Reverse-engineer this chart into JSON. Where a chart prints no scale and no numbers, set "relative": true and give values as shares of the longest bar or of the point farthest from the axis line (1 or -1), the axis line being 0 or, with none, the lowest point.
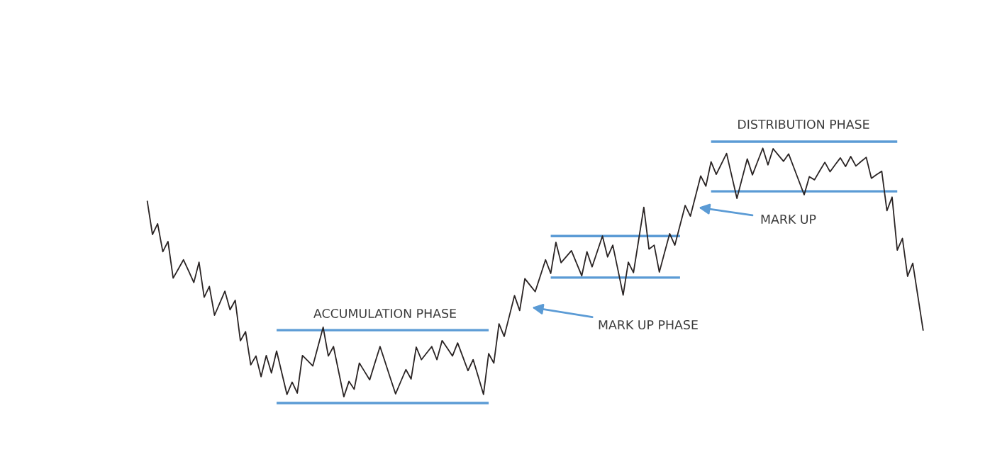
{
  "chart_data": {
    "type": "line",
    "relative": true,
    "categories": [
      null,
      null,
      null,
      null,
      null,
      null,
      null,
      null,
      null,
      null,
      null,
      null,
      null,
      null,
      null,
      null,
      null,
      null,
      null,
      null,
      null,
      null,
      null,
      null,
      null,
      null,
      null,
      null,
      null,
      null,
      null,
      null,
      null,
      null,
      null,
      null,
      null,
      null,
      null,
      null,
      null,
      null,
      null,
      null,
      null,
      null,
      null,
      null,
      null,
      null,
      null,
      null,
      null,
      null,
      null,
      null,
      null,
      null,
      null,
      null,
      null,
      null,
      null,
      null,
      null,
      null,
      null,
      null,
      null,
      null,
      null,
      null,
      null,
      null,
      null,
      null,
      null,
      null,
      null,
      null,
      null,
      null,
      null,
      null,
      null,
      null,
      null,
      null,
      null,
      null,
      null,
      null,
      null,
      null,
      null,
      null,
      null,
      null,
      null,
      null,
      null,
      null,
      null,
      null,
      null,
      null,
      null,
      null,
      null,
      null,
      null,
      null,
      null,
      null,
      null,
      null,
      null,
      null,
      null,
      null,
      null,
      null,
      null,
      null,
      null,
      null,
      null,
      null,
      null,
      null,
      null,
      null,
      null,
      null,
      null,
      null,
      null,
      null,
      null,
      null,
      null,
      null,
      null,
      null,
      null,
      null,
      null,
      null,
      null,
      null,
      null
    ],
    "series": [
      {
        "color": "#5b9bd5",
        "values": [
          null,
          null,
          null,
          null,
          null,
          null,
          null,
          null,
          null,
          null,
          null,
          null,
          null,
          null,
          null,
          null,
          null,
          null,
          null,
          null,
          null,
          null,
          null,
          null,
          null,
          0.279,
          0.279,
          0.279,
          0.279,
          0.279,
          0.279,
          0.279,
          0.279,
          0.279,
          0.279,
          0.279,
          0.279,
          0.279,
          0.279,
          0.279,
          0.279,
          0.279,
          0.279,
          0.279,
          0.279,
          0.279,
          0.279,
          0.279,
          0.279,
          0.279,
          0.279,
          0.279,
          0.279,
          0.279,
          0.279,
          0.279,
          0.279,
          0.279,
          0.279,
          0.279,
          0.279,
          0.279,
          0.279,
          0.279,
          0.279,
          0.279,
          0.279,
          null,
          null,
          null,
          null,
          null,
          null,
          null,
          null,
          null,
          null,
          null,
          null,
          null,
          null,
          null,
          null,
          null,
          null,
          null,
          null,
          null,
          null,
          null,
          null,
          null,
          null,
          null,
          null,
          null,
          null,
          null,
          null,
          null,
          null,
          null,
          null,
          null,
          null,
          null,
          null,
          null,
          null,
          null,
          null,
          null,
          null,
          null,
          null,
          null,
          null,
          null,
          null,
          null,
          null,
          null,
          null,
          null,
          null,
          null,
          null,
          null,
          null,
          null,
          null,
          null,
          null,
          null,
          null,
          null,
          null,
          null,
          null,
          null,
          null,
          null,
          null,
          null,
          null,
          null,
          null,
          null,
          null,
          null,
          null
        ]
      },
      {
        "color": "#5b9bd5",
        "values": [
          null,
          null,
          null,
          null,
          null,
          null,
          null,
          null,
          null,
          null,
          null,
          null,
          null,
          null,
          null,
          null,
          null,
          null,
          null,
          null,
          null,
          null,
          null,
          null,
          null,
          0,
          0,
          0,
          0,
          0,
          0,
          0,
          0,
          0,
          0,
          0,
          0,
          0,
          0,
          0,
          0,
          0,
          0,
          0,
          0,
          0,
          0,
          0,
          0,
          0,
          0,
          0,
          0,
          0,
          0,
          0,
          0,
          0,
          0,
          0,
          0,
          0,
          0,
          0,
          0,
          0,
          0,
          null,
          null,
          null,
          null,
          null,
          null,
          null,
          null,
          null,
          null,
          null,
          null,
          null,
          null,
          null,
          null,
          null,
          null,
          null,
          null,
          null,
          null,
          null,
          null,
          null,
          null,
          null,
          null,
          null,
          null,
          null,
          null,
          null,
          null,
          null,
          null,
          null,
          null,
          null,
          null,
          null,
          null,
          null,
          null,
          null,
          null,
          null,
          null,
          null,
          null,
          null,
          null,
          null,
          null,
          null,
          null,
          null,
          null,
          null,
          null,
          null,
          null,
          null,
          null,
          null,
          null,
          null,
          null,
          null,
          null,
          null,
          null,
          null,
          null,
          null,
          null,
          null,
          null,
          null,
          null,
          null,
          null,
          null,
          null
        ]
      },
      {
        "color": "#5b9bd5",
        "values": [
          null,
          null,
          null,
          null,
          null,
          null,
          null,
          null,
          null,
          null,
          null,
          null,
          null,
          null,
          null,
          null,
          null,
          null,
          null,
          null,
          null,
          null,
          null,
          null,
          null,
          null,
          null,
          null,
          null,
          null,
          null,
          null,
          null,
          null,
          null,
          null,
          null,
          null,
          null,
          null,
          null,
          null,
          null,
          null,
          null,
          null,
          null,
          null,
          null,
          null,
          null,
          null,
          null,
          null,
          null,
          null,
          null,
          null,
          null,
          null,
          null,
          null,
          null,
          null,
          null,
          null,
          null,
          null,
          null,
          null,
          null,
          null,
          null,
          null,
          null,
          null,
          null,
          null,
          0.639,
          0.639,
          0.639,
          0.639,
          0.639,
          0.639,
          0.639,
          0.639,
          0.639,
          0.639,
          0.639,
          0.639,
          0.639,
          0.639,
          0.639,
          0.639,
          0.639,
          0.639,
          0.639,
          0.639,
          0.639,
          0.639,
          0.639,
          0.639,
          0.639,
          0.639,
          null,
          null,
          null,
          null,
          null,
          null,
          null,
          null,
          null,
          null,
          null,
          null,
          null,
          null,
          null,
          null,
          null,
          null,
          null,
          null,
          null,
          null,
          null,
          null,
          null,
          null,
          null,
          null,
          null,
          null,
          null,
          null,
          null,
          null,
          null,
          null,
          null,
          null,
          null,
          null,
          null,
          null,
          null,
          null,
          null,
          null,
          null
        ]
      },
      {
        "color": "#5b9bd5",
        "values": [
          null,
          null,
          null,
          null,
          null,
          null,
          null,
          null,
          null,
          null,
          null,
          null,
          null,
          null,
          null,
          null,
          null,
          null,
          null,
          null,
          null,
          null,
          null,
          null,
          null,
          null,
          null,
          null,
          null,
          null,
          null,
          null,
          null,
          null,
          null,
          null,
          null,
          null,
          null,
          null,
          null,
          null,
          null,
          null,
          null,
          null,
          null,
          null,
          null,
          null,
          null,
          null,
          null,
          null,
          null,
          null,
          null,
          null,
          null,
          null,
          null,
          null,
          null,
          null,
          null,
          null,
          null,
          null,
          null,
          null,
          null,
          null,
          null,
          null,
          null,
          null,
          null,
          null,
          0.48,
          0.48,
          0.48,
          0.48,
          0.48,
          0.48,
          0.48,
          0.48,
          0.48,
          0.48,
          0.48,
          0.48,
          0.48,
          0.48,
          0.48,
          0.48,
          0.48,
          0.48,
          0.48,
          0.48,
          0.48,
          0.48,
          0.48,
          0.48,
          0.48,
          0.48,
          null,
          null,
          null,
          null,
          null,
          null,
          null,
          null,
          null,
          null,
          null,
          null,
          null,
          null,
          null,
          null,
          null,
          null,
          null,
          null,
          null,
          null,
          null,
          null,
          null,
          null,
          null,
          null,
          null,
          null,
          null,
          null,
          null,
          null,
          null,
          null,
          null,
          null,
          null,
          null,
          null,
          null,
          null,
          null,
          null,
          null,
          null
        ]
      },
      {
        "color": "#5b9bd5",
        "values": [
          null,
          null,
          null,
          null,
          null,
          null,
          null,
          null,
          null,
          null,
          null,
          null,
          null,
          null,
          null,
          null,
          null,
          null,
          null,
          null,
          null,
          null,
          null,
          null,
          null,
          null,
          null,
          null,
          null,
          null,
          null,
          null,
          null,
          null,
          null,
          null,
          null,
          null,
          null,
          null,
          null,
          null,
          null,
          null,
          null,
          null,
          null,
          null,
          null,
          null,
          null,
          null,
          null,
          null,
          null,
          null,
          null,
          null,
          null,
          null,
          null,
          null,
          null,
          null,
          null,
          null,
          null,
          null,
          null,
          null,
          null,
          null,
          null,
          null,
          null,
          null,
          null,
          null,
          null,
          null,
          null,
          null,
          null,
          null,
          null,
          null,
          null,
          null,
          null,
          null,
          null,
          null,
          null,
          null,
          null,
          null,
          null,
          null,
          null,
          null,
          null,
          null,
          null,
          null,
          null,
          null,
          null,
          null,
          null,
          1,
          1,
          1,
          1,
          1,
          1,
          1,
          1,
          1,
          1,
          1,
          1,
          1,
          1,
          1,
          1,
          1,
          1,
          1,
          1,
          1,
          1,
          1,
          1,
          1,
          1,
          1,
          1,
          1,
          1,
          1,
          1,
          1,
          1,
          1,
          1,
          1,
          null,
          null,
          null,
          null,
          null
        ]
      },
      {
        "color": "#5b9bd5",
        "values": [
          null,
          null,
          null,
          null,
          null,
          null,
          null,
          null,
          null,
          null,
          null,
          null,
          null,
          null,
          null,
          null,
          null,
          null,
          null,
          null,
          null,
          null,
          null,
          null,
          null,
          null,
          null,
          null,
          null,
          null,
          null,
          null,
          null,
          null,
          null,
          null,
          null,
          null,
          null,
          null,
          null,
          null,
          null,
          null,
          null,
          null,
          null,
          null,
          null,
          null,
          null,
          null,
          null,
          null,
          null,
          null,
          null,
          null,
          null,
          null,
          null,
          null,
          null,
          null,
          null,
          null,
          null,
          null,
          null,
          null,
          null,
          null,
          null,
          null,
          null,
          null,
          null,
          null,
          null,
          null,
          null,
          null,
          null,
          null,
          null,
          null,
          null,
          null,
          null,
          null,
          null,
          null,
          null,
          null,
          null,
          null,
          null,
          null,
          null,
          null,
          null,
          null,
          null,
          null,
          null,
          null,
          null,
          null,
          null,
          0.81,
          0.81,
          0.81,
          0.81,
          0.81,
          0.81,
          0.81,
          0.81,
          0.81,
          0.81,
          0.81,
          0.81,
          0.81,
          0.81,
          0.81,
          0.81,
          0.81,
          0.81,
          0.81,
          0.81,
          0.81,
          0.81,
          0.81,
          0.81,
          0.81,
          0.81,
          0.81,
          0.81,
          0.81,
          0.81,
          0.81,
          0.81,
          0.81,
          0.81,
          0.81,
          0.81,
          0.81,
          null,
          null,
          null,
          null,
          null
        ]
      },
      {
        "color": "#2a2424",
        "values": [
          0.772,
          0.645,
          0.686,
          0.579,
          0.618,
          0.478,
          0.513,
          0.548,
          0.505,
          0.461,
          0.539,
          0.405,
          0.446,
          0.336,
          0.382,
          0.428,
          0.357,
          0.393,
          0.238,
          0.273,
          0.146,
          0.18,
          0.101,
          0.182,
          0.115,
          0.199,
          0.116,
          0.033,
          0.08,
          0.038,
          0.182,
          0.162,
          0.142,
          0.216,
          0.29,
          0.18,
          0.216,
          0.12,
          0.024,
          0.083,
          0.053,
          0.153,
          0.121,
          0.089,
          0.153,
          0.216,
          0.156,
          0.095,
          0.035,
          0.082,
          0.128,
          0.092,
          0.214,
          0.166,
          0.191,
          0.216,
          0.166,
          0.239,
          0.21,
          0.18,
          0.23,
          0.177,
          0.124,
          0.166,
          0.1,
          0.033,
          0.189,
          0.153,
          0.303,
          0.255,
          0.333,
          0.411,
          0.354,
          0.476,
          0.451,
          0.426,
          0.487,
          0.548,
          0.496,
          0.615,
          0.537,
          0.56,
          0.583,
          0.535,
          0.487,
          0.579,
          0.521,
          0.58,
          0.639,
          0.559,
          0.604,
          0.509,
          0.413,
          0.539,
          0.499,
          0.624,
          0.749,
          0.589,
          0.604,
          0.501,
          0.575,
          0.648,
          0.604,
          0.68,
          0.756,
          0.715,
          0.792,
          0.869,
          0.83,
          0.923,
          0.875,
          0.915,
          0.955,
          0.869,
          0.783,
          0.859,
          0.934,
          0.873,
          0.924,
          0.975,
          0.911,
          0.973,
          0.949,
          0.925,
          0.953,
          0.901,
          0.849,
          0.797,
          0.866,
          0.854,
          0.888,
          0.921,
          0.885,
          0.912,
          0.938,
          0.905,
          0.943,
          0.907,
          0.924,
          0.94,
          0.86,
          0.874,
          0.887,
          0.736,
          0.788,
          0.585,
          0.63,
          0.485,
          0.535,
          0.407,
          0.279
        ]
      }
    ],
    "annotations": [
      "ACCUMULATION PHASE",
      "MARK UP PHASE",
      "MARK UP",
      "DISTRIBUTION PHASE"
    ]
  }
}
